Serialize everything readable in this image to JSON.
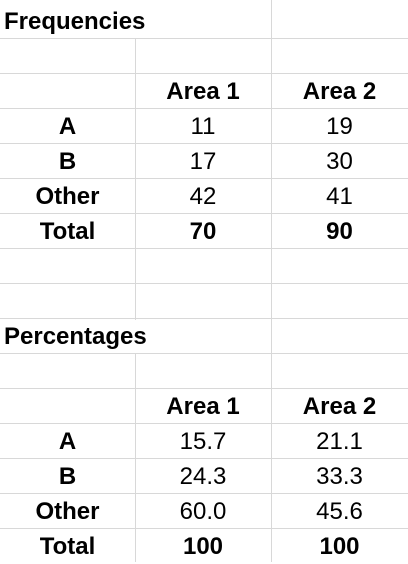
{
  "frequencies": {
    "title": "Frequencies",
    "headers": [
      "Area 1",
      "Area 2"
    ],
    "rows": [
      {
        "label": "A",
        "values": [
          "11",
          "19"
        ]
      },
      {
        "label": "B",
        "values": [
          "17",
          "30"
        ]
      },
      {
        "label": "Other",
        "values": [
          "42",
          "41"
        ]
      },
      {
        "label": "Total",
        "values": [
          "70",
          "90"
        ]
      }
    ]
  },
  "percentages": {
    "title": "Percentages",
    "headers": [
      "Area 1",
      "Area 2"
    ],
    "rows": [
      {
        "label": "A",
        "values": [
          "15.7",
          "21.1"
        ]
      },
      {
        "label": "B",
        "values": [
          "24.3",
          "33.3"
        ]
      },
      {
        "label": "Other",
        "values": [
          "60.0",
          "45.6"
        ]
      },
      {
        "label": "Total",
        "values": [
          "100",
          "100"
        ]
      }
    ]
  }
}
